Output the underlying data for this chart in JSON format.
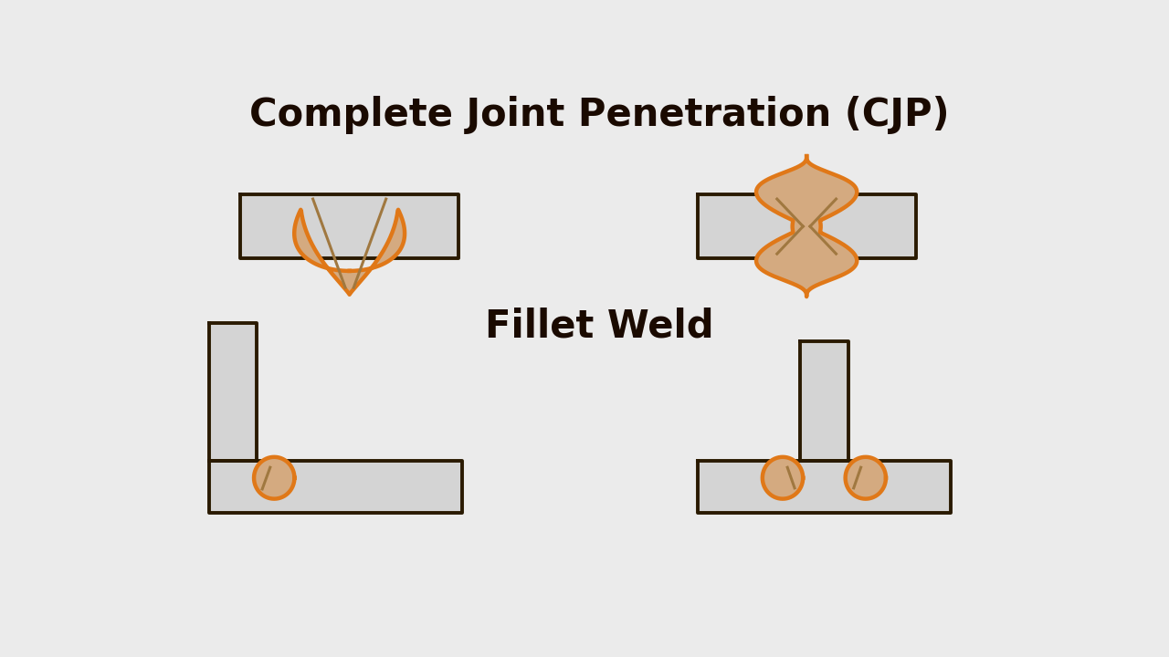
{
  "bg_color": "#ebebeb",
  "plate_fill": "#d4d4d4",
  "plate_edge": "#2a1a00",
  "weld_fill": "#d4aa80",
  "weld_edge": "#e07818",
  "weld_line": "#a07840",
  "title_cjp": "Complete Joint Penetration (CJP)",
  "title_fillet": "Fillet Weld",
  "title_color": "#1a0a00",
  "title_fontsize": 30,
  "plate_lw": 2.8,
  "weld_lw": 3.2,
  "inner_lw": 2.2
}
